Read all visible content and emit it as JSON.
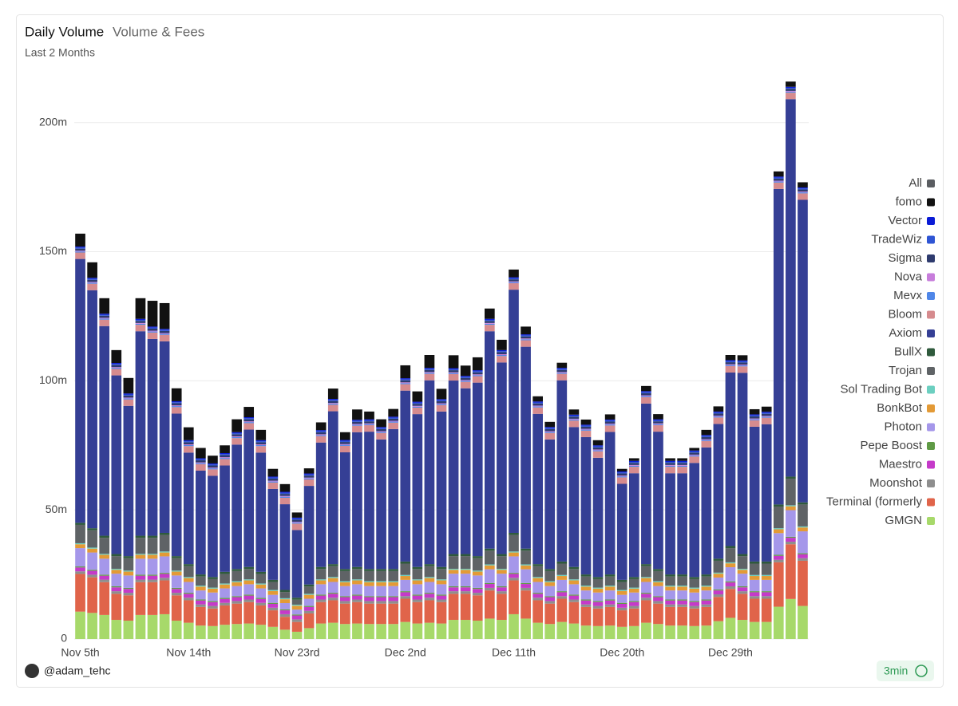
{
  "chart_data": {
    "type": "stacked_bar",
    "title": "Daily Volume",
    "tab": "Volume & Fees",
    "subtitle": "Last 2 Months",
    "footer": {
      "author": "@adam_tehc",
      "refresh": "3min"
    },
    "legend": "right",
    "grid": true,
    "ylim": [
      0,
      220
    ],
    "yticks": [
      0,
      {
        "value": 50,
        "label": "50m"
      },
      {
        "value": 100,
        "label": "100m"
      },
      {
        "value": 150,
        "label": "150m"
      },
      {
        "value": 200,
        "label": "200m"
      }
    ],
    "categories": [
      "Nov 5th",
      null,
      null,
      null,
      null,
      null,
      null,
      null,
      null,
      "Nov 14th",
      null,
      null,
      null,
      null,
      null,
      null,
      null,
      null,
      "Nov 23rd",
      null,
      null,
      null,
      null,
      null,
      null,
      null,
      null,
      "Dec 2nd",
      null,
      null,
      null,
      null,
      null,
      null,
      null,
      null,
      "Dec 11th",
      null,
      null,
      null,
      null,
      null,
      null,
      null,
      null,
      "Dec 20th",
      null,
      null,
      null,
      null,
      null,
      null,
      null,
      null,
      "Dec 29th",
      null,
      null,
      null,
      null,
      null,
      null
    ],
    "series": [
      {
        "name": "All",
        "color": "#5a5d61"
      },
      {
        "name": "fomo",
        "color": "#111111",
        "values": [
          5,
          6,
          6,
          5,
          6,
          8,
          10,
          10,
          5,
          5,
          4,
          3,
          3,
          5,
          4,
          4,
          3,
          3,
          2,
          2,
          3,
          4,
          3,
          4,
          3,
          3,
          3,
          5,
          4,
          5,
          4,
          5,
          4,
          5,
          4,
          4,
          3,
          3,
          2,
          2,
          2,
          2,
          2,
          2,
          2,
          1,
          1,
          2,
          2,
          1,
          1,
          1,
          2,
          2,
          2,
          2,
          2,
          2,
          2,
          2,
          2
        ]
      },
      {
        "name": "Vector",
        "color": "#0a1bd6",
        "values": [
          0.4,
          0.4,
          0.4,
          0.4,
          0.4,
          0.4,
          0.4,
          0.4,
          0.4,
          0.4,
          0.4,
          0.4,
          0.4,
          0.4,
          0.4,
          0.4,
          0.4,
          0.4,
          0.4,
          0.4,
          0.4,
          0.4,
          0.4,
          0.4,
          0.4,
          0.4,
          0.4,
          0.4,
          0.4,
          0.4,
          0.4,
          0.4,
          0.4,
          0.4,
          0.4,
          0.4,
          0.4,
          0.4,
          0.4,
          0.4,
          0.4,
          0.4,
          0.4,
          0.4,
          0.4,
          0.4,
          0.4,
          0.4,
          0.4,
          0.4,
          0.4,
          0.4,
          0.4,
          0.4,
          0.4,
          0.4,
          0.4,
          0.4,
          0.4,
          0.4,
          0.4
        ]
      },
      {
        "name": "TradeWiz",
        "color": "#2f55d4",
        "values": [
          0.4,
          0.4,
          0.4,
          0.4,
          0.4,
          0.4,
          0.4,
          0.4,
          0.4,
          0.4,
          0.4,
          0.4,
          0.4,
          0.4,
          0.4,
          0.4,
          0.4,
          0.4,
          0.4,
          0.4,
          0.4,
          0.4,
          0.4,
          0.4,
          0.4,
          0.4,
          0.4,
          0.4,
          0.4,
          0.4,
          0.4,
          0.4,
          0.4,
          0.4,
          0.4,
          0.4,
          0.4,
          0.4,
          0.4,
          0.4,
          0.4,
          0.4,
          0.4,
          0.4,
          0.4,
          0.4,
          0.4,
          0.4,
          0.4,
          0.4,
          0.4,
          0.4,
          0.4,
          0.4,
          0.4,
          0.4,
          0.4,
          0.4,
          0.4,
          0.4,
          0.4
        ]
      },
      {
        "name": "Sigma",
        "color": "#2e3b6e",
        "values": [
          0.8,
          0.8,
          0.8,
          0.8,
          0.8,
          0.8,
          0.8,
          0.8,
          0.8,
          0.8,
          0.8,
          0.8,
          0.8,
          0.8,
          0.8,
          0.8,
          0.8,
          0.8,
          0.8,
          0.8,
          0.8,
          0.8,
          0.8,
          0.8,
          0.8,
          0.8,
          0.8,
          0.8,
          0.8,
          0.8,
          0.8,
          0.8,
          0.8,
          0.8,
          0.8,
          0.8,
          0.8,
          0.8,
          0.8,
          0.8,
          0.8,
          0.8,
          0.8,
          0.8,
          0.8,
          0.8,
          0.8,
          0.8,
          0.8,
          0.8,
          0.8,
          0.8,
          0.8,
          0.8,
          0.8,
          0.8,
          0.8,
          0.8,
          0.8,
          0.8,
          0.8
        ]
      },
      {
        "name": "Nova",
        "color": "#c77ddb",
        "values": [
          0.3,
          0.3,
          0.3,
          0.3,
          0.3,
          0.3,
          0.3,
          0.3,
          0.3,
          0.3,
          0.3,
          0.3,
          0.3,
          0.3,
          0.3,
          0.3,
          0.3,
          0.3,
          0.3,
          0.3,
          0.3,
          0.3,
          0.3,
          0.3,
          0.3,
          0.3,
          0.3,
          0.3,
          0.3,
          0.3,
          0.3,
          0.3,
          0.3,
          0.3,
          0.3,
          0.3,
          0.3,
          0.3,
          0.3,
          0.3,
          0.3,
          0.3,
          0.3,
          0.3,
          0.3,
          0.3,
          0.3,
          0.3,
          0.3,
          0.3,
          0.3,
          0.3,
          0.3,
          0.3,
          0.3,
          0.3,
          0.3,
          0.3,
          0.3,
          0.3,
          0.3
        ]
      },
      {
        "name": "Mevx",
        "color": "#4f86e8",
        "values": [
          0.4,
          0.4,
          0.4,
          0.4,
          0.4,
          0.4,
          0.4,
          0.4,
          0.4,
          0.4,
          0.4,
          0.4,
          0.4,
          0.4,
          0.4,
          0.4,
          0.4,
          0.4,
          0.4,
          0.4,
          0.4,
          0.4,
          0.4,
          0.4,
          0.4,
          0.4,
          0.4,
          0.4,
          0.4,
          0.4,
          0.4,
          0.4,
          0.4,
          0.4,
          0.4,
          0.4,
          0.4,
          0.4,
          0.4,
          0.4,
          0.4,
          0.4,
          0.4,
          0.4,
          0.4,
          0.4,
          0.4,
          0.4,
          0.4,
          0.4,
          0.4,
          0.4,
          0.4,
          0.4,
          0.4,
          0.4,
          0.4,
          0.4,
          0.4,
          0.4,
          0.4
        ]
      },
      {
        "name": "Bloom",
        "color": "#d68b8e",
        "values": [
          2.5,
          2.5,
          2.5,
          2.5,
          2.5,
          2.5,
          2.5,
          2.5,
          2.5,
          2.5,
          2.5,
          2.5,
          2.5,
          2.5,
          2.5,
          2.5,
          2.5,
          2.5,
          2.5,
          2.5,
          2.5,
          2.5,
          2.5,
          2.5,
          2.5,
          2.5,
          2.5,
          2.5,
          2.5,
          2.5,
          2.5,
          2.5,
          2.5,
          2.5,
          2.5,
          2.5,
          2.5,
          2.5,
          2.5,
          2.5,
          2.5,
          2.5,
          2.5,
          2.5,
          2.5,
          2.5,
          2.5,
          2.5,
          2.5,
          2.5,
          2.5,
          2.5,
          2.5,
          2.5,
          2.5,
          2.5,
          2.5,
          2.5,
          2.5,
          2.5,
          2.5
        ]
      },
      {
        "name": "Axiom",
        "color": "#353f95",
        "values": [
          102.2,
          92.2,
          81.2,
          69.2,
          58.2,
          79.2,
          76.2,
          74.2,
          55.2,
          43.2,
          40.2,
          39.2,
          41.2,
          48.2,
          53.2,
          46.2,
          35.2,
          33.2,
          26.2,
          38.2,
          48.2,
          59.2,
          45.2,
          52.2,
          53.2,
          50.2,
          54.2,
          66.2,
          59.2,
          71.2,
          60.2,
          67.2,
          64.2,
          67.2,
          84.2,
          74.2,
          94.2,
          78.2,
          58.2,
          50.2,
          70.2,
          54.2,
          53.2,
          46.2,
          55.2,
          37.2,
          40.2,
          62.2,
          53.2,
          39.2,
          39.2,
          44.2,
          49.2,
          52.2,
          67.2,
          70.2,
          52.2,
          53.2,
          122.2,
          146.2,
          117.2
        ]
      },
      {
        "name": "BullX",
        "color": "#2f5a3c",
        "values": [
          0.8,
          0.8,
          0.8,
          0.8,
          0.8,
          0.8,
          0.8,
          0.8,
          0.8,
          0.8,
          0.8,
          0.8,
          0.8,
          0.8,
          0.8,
          0.8,
          0.8,
          0.8,
          0.8,
          0.8,
          0.8,
          0.8,
          0.8,
          0.8,
          0.8,
          0.8,
          0.8,
          0.8,
          0.8,
          0.8,
          0.8,
          0.8,
          0.8,
          0.8,
          0.8,
          0.8,
          0.8,
          0.8,
          0.8,
          0.8,
          0.8,
          0.8,
          0.8,
          0.8,
          0.8,
          0.8,
          0.8,
          0.8,
          0.8,
          0.8,
          0.8,
          0.8,
          0.8,
          0.8,
          0.8,
          0.8,
          0.8,
          0.8,
          0.8,
          0.8,
          0.8
        ]
      },
      {
        "name": "Trojan",
        "color": "#5f6366",
        "values": [
          7.1,
          6.7,
          6.2,
          4.9,
          4.8,
          6.2,
          6.2,
          6.4,
          4.8,
          4.2,
          3.5,
          3.3,
          3.7,
          3.9,
          4.0,
          3.7,
          3.1,
          2.4,
          1.9,
          2.8,
          4.0,
          4.2,
          3.9,
          4.0,
          3.9,
          3.9,
          3.9,
          4.4,
          4.0,
          4.2,
          4.0,
          4.9,
          4.9,
          4.8,
          5.3,
          4.9,
          6.4,
          5.3,
          4.2,
          3.9,
          4.4,
          4.0,
          3.5,
          3.3,
          3.5,
          3.1,
          3.3,
          4.2,
          3.9,
          3.5,
          3.5,
          3.3,
          3.5,
          4.6,
          5.5,
          4.9,
          4.4,
          4.4,
          8.4,
          10.3,
          8.5
        ]
      },
      {
        "name": "Sol Trading Bot",
        "color": "#6ccfc0",
        "values": [
          0.4,
          0.4,
          0.4,
          0.4,
          0.4,
          0.4,
          0.4,
          0.4,
          0.4,
          0.4,
          0.4,
          0.4,
          0.4,
          0.4,
          0.4,
          0.4,
          0.4,
          0.4,
          0.4,
          0.4,
          0.4,
          0.4,
          0.4,
          0.4,
          0.4,
          0.4,
          0.4,
          0.4,
          0.4,
          0.4,
          0.4,
          0.4,
          0.4,
          0.4,
          0.4,
          0.4,
          0.4,
          0.4,
          0.4,
          0.4,
          0.4,
          0.4,
          0.4,
          0.4,
          0.4,
          0.4,
          0.4,
          0.4,
          0.4,
          0.4,
          0.4,
          0.4,
          0.4,
          0.4,
          0.4,
          0.4,
          0.4,
          0.4,
          0.4,
          0.4,
          0.4
        ]
      },
      {
        "name": "BonkBot",
        "color": "#e39a36",
        "values": [
          1.5,
          1.5,
          1.5,
          1.5,
          1.5,
          1.5,
          1.5,
          1.5,
          1.5,
          1.5,
          1.5,
          1.5,
          1.5,
          1.5,
          1.5,
          1.5,
          1.5,
          1.5,
          1.5,
          1.5,
          1.5,
          1.5,
          1.5,
          1.5,
          1.5,
          1.5,
          1.5,
          1.5,
          1.5,
          1.5,
          1.5,
          1.5,
          1.5,
          1.5,
          1.5,
          1.5,
          1.5,
          1.5,
          1.5,
          1.5,
          1.5,
          1.5,
          1.5,
          1.5,
          1.5,
          1.5,
          1.5,
          1.5,
          1.5,
          1.5,
          1.5,
          1.5,
          1.5,
          1.5,
          1.5,
          1.5,
          1.5,
          1.5,
          1.5,
          1.5,
          1.5
        ]
      },
      {
        "name": "Photon",
        "color": "#a597ea",
        "values": [
          7.1,
          6.7,
          6.2,
          4.9,
          4.8,
          6.2,
          6.2,
          6.4,
          4.8,
          4.2,
          3.5,
          3.3,
          3.7,
          3.9,
          4.0,
          3.7,
          3.1,
          2.4,
          1.9,
          2.8,
          4.0,
          4.2,
          3.9,
          4.0,
          3.9,
          3.9,
          3.9,
          4.4,
          4.0,
          4.2,
          4.0,
          4.9,
          4.9,
          4.8,
          5.3,
          4.9,
          6.4,
          5.3,
          4.2,
          3.9,
          4.4,
          4.0,
          3.5,
          3.3,
          3.5,
          3.1,
          3.3,
          4.2,
          3.9,
          3.5,
          3.5,
          3.3,
          3.5,
          4.6,
          5.5,
          4.9,
          4.4,
          4.4,
          8.4,
          10.3,
          8.5
        ]
      },
      {
        "name": "Pepe Boost",
        "color": "#5f9a45",
        "values": [
          0.4,
          0.4,
          0.4,
          0.4,
          0.4,
          0.4,
          0.4,
          0.4,
          0.4,
          0.4,
          0.4,
          0.4,
          0.4,
          0.4,
          0.4,
          0.4,
          0.4,
          0.4,
          0.4,
          0.4,
          0.4,
          0.4,
          0.4,
          0.4,
          0.4,
          0.4,
          0.4,
          0.4,
          0.4,
          0.4,
          0.4,
          0.4,
          0.4,
          0.4,
          0.4,
          0.4,
          0.4,
          0.4,
          0.4,
          0.4,
          0.4,
          0.4,
          0.4,
          0.4,
          0.4,
          0.4,
          0.4,
          0.4,
          0.4,
          0.4,
          0.4,
          0.4,
          0.4,
          0.4,
          0.4,
          0.4,
          0.4,
          0.4,
          0.4,
          0.4,
          0.4
        ]
      },
      {
        "name": "Maestro",
        "color": "#c53ac9",
        "values": [
          1.5,
          1.5,
          1.5,
          1.5,
          1.5,
          1.5,
          1.5,
          1.5,
          1.5,
          1.5,
          1.5,
          1.5,
          1.5,
          1.5,
          1.5,
          1.5,
          1.5,
          1.5,
          1.5,
          1.5,
          1.5,
          1.5,
          1.5,
          1.5,
          1.5,
          1.5,
          1.5,
          1.5,
          1.5,
          1.5,
          1.5,
          1.5,
          1.5,
          1.5,
          1.5,
          1.5,
          1.5,
          1.5,
          1.5,
          1.5,
          1.5,
          1.5,
          1.5,
          1.5,
          1.5,
          1.5,
          1.5,
          1.5,
          1.5,
          1.5,
          1.5,
          1.5,
          1.5,
          1.5,
          1.5,
          1.5,
          1.5,
          1.5,
          1.5,
          1.5,
          1.5
        ]
      },
      {
        "name": "Moonshot",
        "color": "#8e8e8e",
        "values": [
          1,
          1,
          1,
          1,
          1,
          1,
          1,
          1,
          1,
          1,
          1,
          1,
          1,
          1,
          1,
          1,
          1,
          1,
          1,
          1,
          1,
          1,
          1,
          1,
          1,
          1,
          1,
          1,
          1,
          1,
          1,
          1,
          1,
          1,
          1,
          1,
          1,
          1,
          1,
          1,
          1,
          1,
          1,
          1,
          1,
          1,
          1,
          1,
          1,
          1,
          1,
          1,
          1,
          1,
          1,
          1,
          1,
          1,
          1,
          1,
          1
        ]
      },
      {
        "name": "Terminal (formerly",
        "color": "#e0644a",
        "values": [
          14.6,
          13.8,
          12.7,
          10.1,
          9.8,
          12.7,
          12.7,
          13.1,
          9.8,
          8.7,
          7.2,
          6.8,
          7.5,
          7.9,
          8.3,
          7.5,
          6.4,
          5.0,
          3.8,
          5.7,
          8.3,
          8.7,
          7.9,
          8.3,
          7.9,
          7.9,
          7.9,
          9.0,
          8.3,
          8.7,
          8.3,
          10.1,
          10.1,
          9.8,
          10.9,
          10.1,
          13.1,
          10.9,
          8.7,
          7.9,
          9.0,
          8.3,
          7.2,
          6.8,
          7.2,
          6.4,
          6.8,
          8.7,
          7.9,
          7.2,
          7.2,
          6.8,
          7.2,
          9.4,
          11.2,
          10.1,
          9.0,
          9.0,
          17.2,
          21.2,
          17.5
        ]
      },
      {
        "name": "GMGN",
        "color": "#a7d96a",
        "values": [
          10.6,
          10.1,
          9.3,
          7.4,
          7.1,
          9.3,
          9.3,
          9.6,
          7.1,
          6.3,
          5.2,
          5.0,
          5.5,
          5.8,
          6.0,
          5.5,
          4.7,
          3.6,
          2.8,
          4.2,
          6.0,
          6.3,
          5.8,
          6.0,
          5.8,
          5.8,
          5.8,
          6.6,
          6.0,
          6.3,
          6.0,
          7.4,
          7.4,
          7.1,
          7.9,
          7.4,
          9.6,
          7.9,
          6.3,
          5.8,
          6.6,
          6.0,
          5.2,
          5.0,
          5.2,
          4.7,
          5.0,
          6.3,
          5.8,
          5.2,
          5.2,
          5.0,
          5.2,
          6.9,
          8.2,
          7.4,
          6.6,
          6.6,
          12.5,
          15.5,
          12.8
        ]
      }
    ]
  }
}
